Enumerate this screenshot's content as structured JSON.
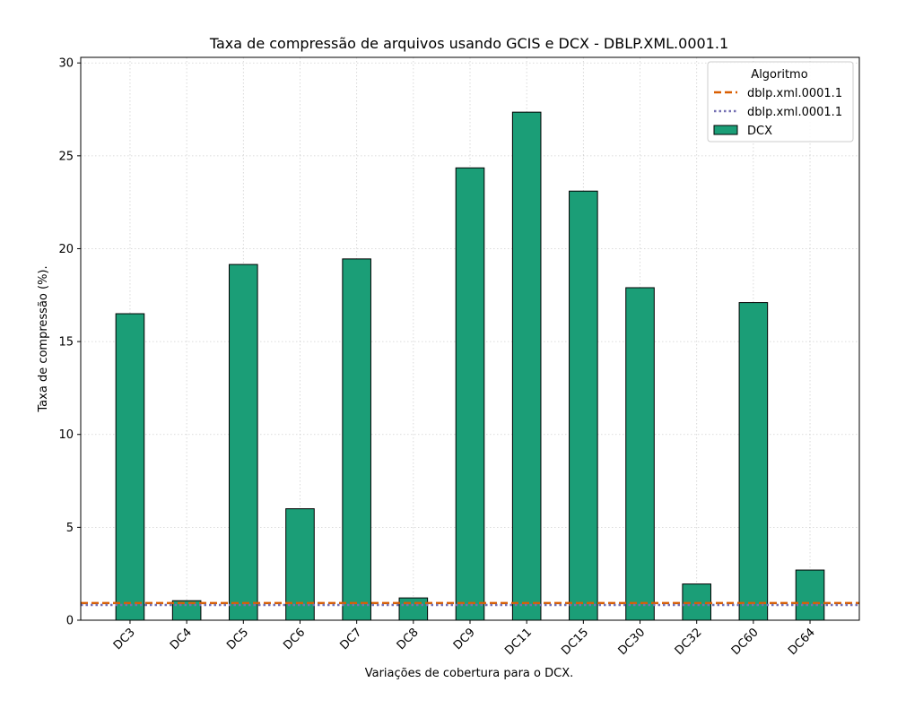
{
  "chart_data": {
    "type": "bar",
    "title": "Taxa de compressão de arquivos usando GCIS e DCX -  DBLP.XML.0001.1",
    "xlabel": "Variações de cobertura para o DCX.",
    "ylabel": "Taxa de compressão (%).",
    "ylim": [
      0,
      30.3
    ],
    "yticks": [
      "0",
      "5",
      "10",
      "15",
      "20",
      "25",
      "30"
    ],
    "categories": [
      "DC3",
      "DC4",
      "DC5",
      "DC6",
      "DC7",
      "DC8",
      "DC9",
      "DC11",
      "DC15",
      "DC30",
      "DC32",
      "DC60",
      "DC64"
    ],
    "series": [
      {
        "name": "DCX",
        "values": [
          16.5,
          1.05,
          19.15,
          6.0,
          19.45,
          1.2,
          24.35,
          27.35,
          23.1,
          17.9,
          1.95,
          17.1,
          2.7
        ],
        "color": "#1b9e77"
      }
    ],
    "reference_lines": [
      {
        "name": "dblp.xml.0001.1",
        "value": 0.92,
        "style": "dashed",
        "color": "#d95f02"
      },
      {
        "name": "dblp.xml.0001.1",
        "value": 0.82,
        "style": "dotted",
        "color": "#7570b3"
      }
    ],
    "grid": true,
    "legend": {
      "title": "Algoritmo",
      "placement": "top-right"
    }
  }
}
